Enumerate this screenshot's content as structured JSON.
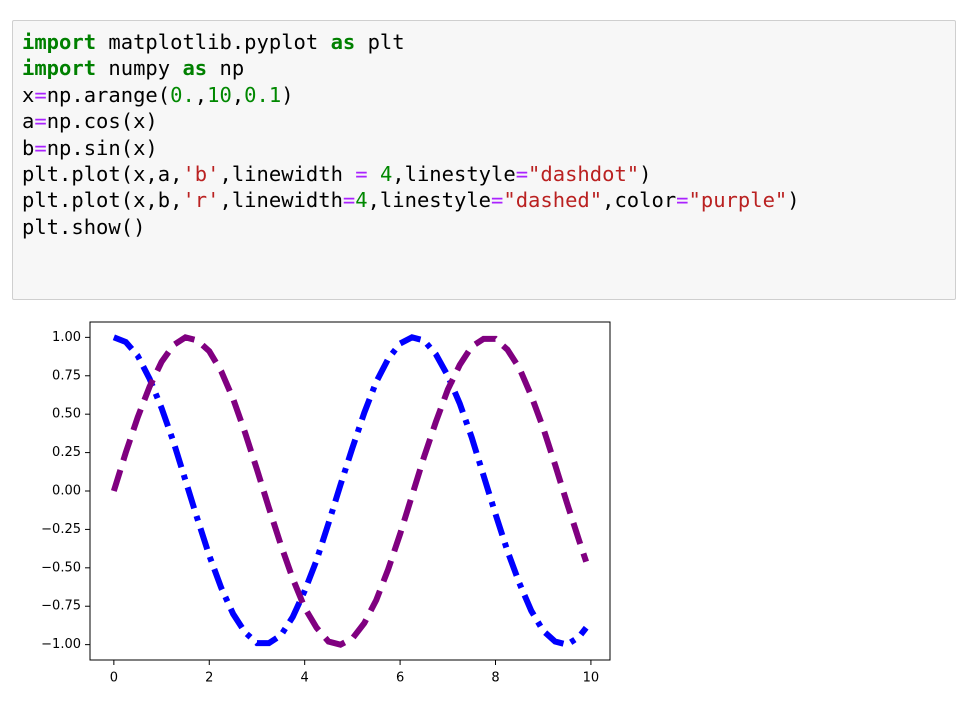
{
  "code_cell": {
    "lines": [
      {
        "tokens": [
          {
            "text": "import",
            "color": "#008000",
            "bold": true
          },
          {
            "text": " matplotlib.pyplot ",
            "color": "#000000"
          },
          {
            "text": "as",
            "color": "#008000",
            "bold": true
          },
          {
            "text": " plt",
            "color": "#000000"
          }
        ]
      },
      {
        "tokens": [
          {
            "text": "import",
            "color": "#008000",
            "bold": true
          },
          {
            "text": " numpy ",
            "color": "#000000"
          },
          {
            "text": "as",
            "color": "#008000",
            "bold": true
          },
          {
            "text": " np",
            "color": "#000000"
          }
        ]
      },
      {
        "tokens": [
          {
            "text": "x",
            "color": "#000000"
          },
          {
            "text": "=",
            "color": "#aa22ff"
          },
          {
            "text": "np.arange(",
            "color": "#000000"
          },
          {
            "text": "0.",
            "color": "#008800"
          },
          {
            "text": ",",
            "color": "#000000"
          },
          {
            "text": "10",
            "color": "#008800"
          },
          {
            "text": ",",
            "color": "#000000"
          },
          {
            "text": "0.1",
            "color": "#008800"
          },
          {
            "text": ")",
            "color": "#000000"
          }
        ]
      },
      {
        "tokens": [
          {
            "text": "a",
            "color": "#000000"
          },
          {
            "text": "=",
            "color": "#aa22ff"
          },
          {
            "text": "np.cos(x)",
            "color": "#000000"
          }
        ]
      },
      {
        "tokens": [
          {
            "text": "b",
            "color": "#000000"
          },
          {
            "text": "=",
            "color": "#aa22ff"
          },
          {
            "text": "np.sin(x)",
            "color": "#000000"
          }
        ]
      },
      {
        "tokens": [
          {
            "text": "plt.plot(x,a,",
            "color": "#000000"
          },
          {
            "text": "'b'",
            "color": "#ba2121"
          },
          {
            "text": ",linewidth ",
            "color": "#000000"
          },
          {
            "text": "=",
            "color": "#aa22ff"
          },
          {
            "text": " ",
            "color": "#000000"
          },
          {
            "text": "4",
            "color": "#008800"
          },
          {
            "text": ",linestyle",
            "color": "#000000"
          },
          {
            "text": "=",
            "color": "#aa22ff"
          },
          {
            "text": "\"dashdot\"",
            "color": "#ba2121"
          },
          {
            "text": ")",
            "color": "#000000"
          }
        ]
      },
      {
        "tokens": [
          {
            "text": "plt.plot(x,b,",
            "color": "#000000"
          },
          {
            "text": "'r'",
            "color": "#ba2121"
          },
          {
            "text": ",linewidth",
            "color": "#000000"
          },
          {
            "text": "=",
            "color": "#aa22ff"
          },
          {
            "text": "4",
            "color": "#008800"
          },
          {
            "text": ",linestyle",
            "color": "#000000"
          },
          {
            "text": "=",
            "color": "#aa22ff"
          },
          {
            "text": "\"dashed\"",
            "color": "#ba2121"
          },
          {
            "text": ",color",
            "color": "#000000"
          },
          {
            "text": "=",
            "color": "#aa22ff"
          },
          {
            "text": "\"purple\"",
            "color": "#ba2121"
          },
          {
            "text": ")",
            "color": "#000000"
          }
        ]
      },
      {
        "tokens": [
          {
            "text": "plt.show()",
            "color": "#000000"
          }
        ]
      }
    ]
  },
  "chart_data": {
    "type": "line",
    "x": [
      0,
      0.25,
      0.5,
      0.75,
      1,
      1.25,
      1.5,
      1.75,
      2,
      2.25,
      2.5,
      2.75,
      3,
      3.25,
      3.5,
      3.75,
      4,
      4.25,
      4.5,
      4.75,
      5,
      5.25,
      5.5,
      5.75,
      6,
      6.25,
      6.5,
      6.75,
      7,
      7.25,
      7.5,
      7.75,
      8,
      8.25,
      8.5,
      8.75,
      9,
      9.25,
      9.5,
      9.75,
      9.9
    ],
    "series": [
      {
        "color": "#0000ff",
        "linestyle": "dashdot",
        "values": [
          1.0,
          0.97,
          0.88,
          0.73,
          0.54,
          0.32,
          0.07,
          -0.18,
          -0.42,
          -0.63,
          -0.8,
          -0.92,
          -0.99,
          -0.99,
          -0.94,
          -0.82,
          -0.65,
          -0.45,
          -0.21,
          0.04,
          0.28,
          0.51,
          0.71,
          0.86,
          0.96,
          1.0,
          0.98,
          0.89,
          0.75,
          0.57,
          0.35,
          0.1,
          -0.15,
          -0.39,
          -0.6,
          -0.78,
          -0.91,
          -0.98,
          -1.0,
          -0.95,
          -0.89
        ]
      },
      {
        "color": "#800080",
        "linestyle": "dashed",
        "values": [
          0.0,
          0.25,
          0.48,
          0.68,
          0.84,
          0.95,
          1.0,
          0.98,
          0.91,
          0.78,
          0.6,
          0.38,
          0.14,
          -0.11,
          -0.35,
          -0.57,
          -0.76,
          -0.89,
          -0.98,
          -1.0,
          -0.96,
          -0.86,
          -0.71,
          -0.51,
          -0.28,
          -0.03,
          0.22,
          0.45,
          0.66,
          0.82,
          0.94,
          0.99,
          0.99,
          0.92,
          0.8,
          0.62,
          0.41,
          0.17,
          -0.08,
          -0.32,
          -0.46
        ]
      }
    ],
    "xlim": [
      -0.5,
      10.4
    ],
    "ylim": [
      -1.1,
      1.1
    ],
    "xticks": [
      0,
      2,
      4,
      6,
      8,
      10
    ],
    "yticks": [
      {
        "value": -1,
        "label": "−1.00"
      },
      {
        "value": -0.75,
        "label": "−0.75"
      },
      {
        "value": -0.5,
        "label": "−0.50"
      },
      {
        "value": -0.25,
        "label": "−0.25"
      },
      {
        "value": 0,
        "label": "0.00"
      },
      {
        "value": 0.25,
        "label": "0.25"
      },
      {
        "value": 0.5,
        "label": "0.50"
      },
      {
        "value": 0.75,
        "label": "0.75"
      },
      {
        "value": 1,
        "label": "1.00"
      }
    ],
    "grid": false
  }
}
